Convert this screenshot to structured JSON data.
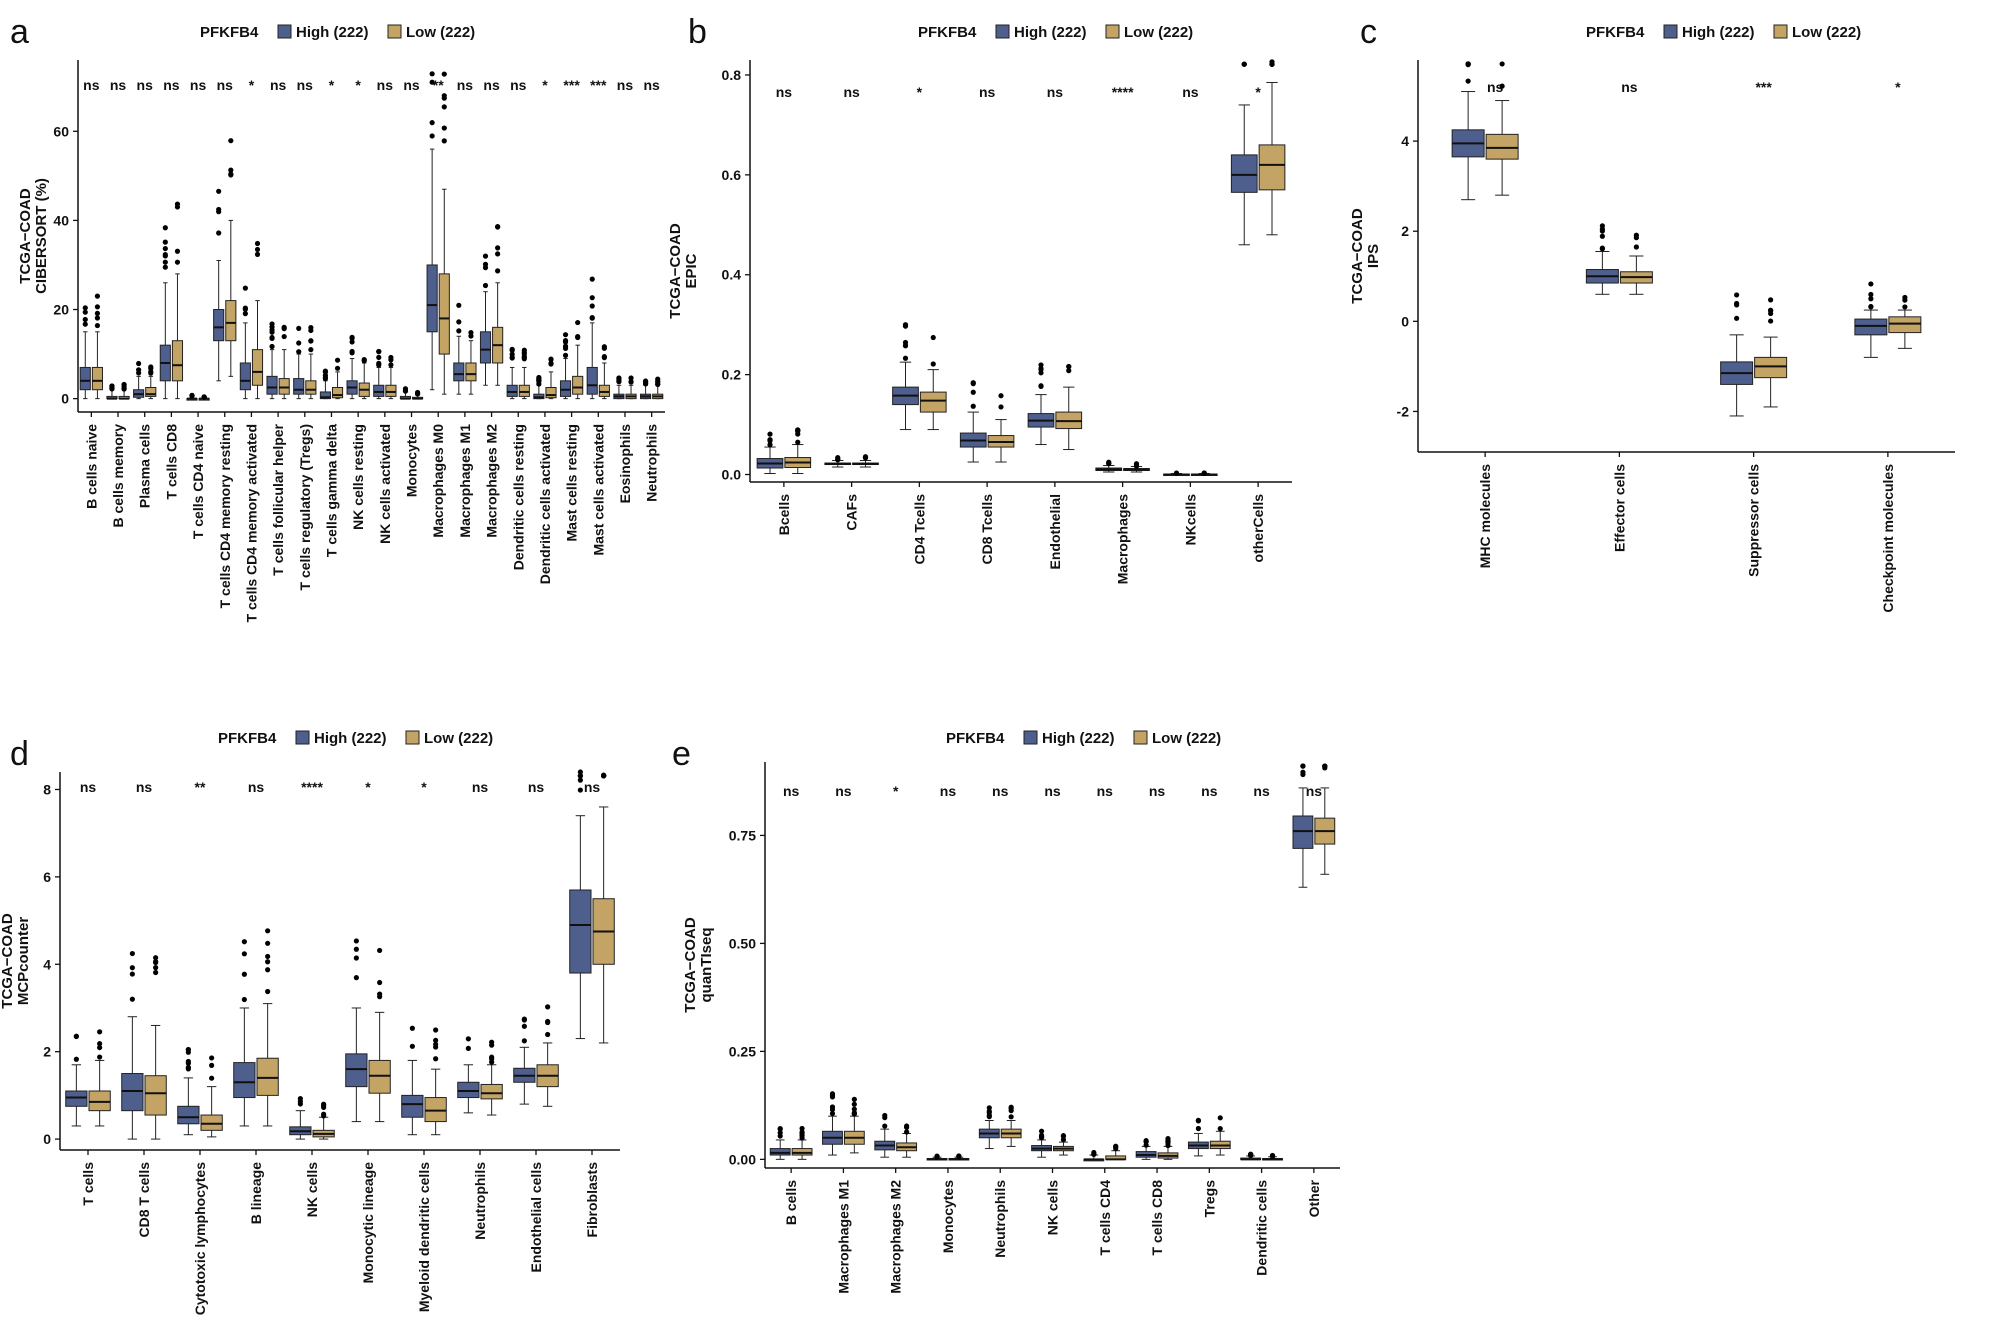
{
  "colors": {
    "high": "#4e5f8d",
    "low": "#c4a464",
    "axis": "#111111",
    "point": "#000000"
  },
  "legend": {
    "title": "PFKFB4",
    "high_label": "High (222)",
    "low_label": "Low (222)"
  },
  "chart_data": [
    {
      "id": "a",
      "panel_label": "a",
      "type": "box",
      "ylabel_line1": "TCGA−COAD",
      "ylabel_line2": "CIBERSORT (%)",
      "ylim": [
        -3,
        76
      ],
      "yticks": [
        0,
        20,
        40,
        60
      ],
      "categories": [
        "B cells naive",
        "B cells memory",
        "Plasma cells",
        "T cells CD8",
        "T cells CD4 naive",
        "T cells CD4 memory resting",
        "T cells CD4 memory activated",
        "T cells follicular helper",
        "T cells regulatory (Tregs)",
        "T cells gamma delta",
        "NK cells resting",
        "NK cells activated",
        "Monocytes",
        "Macrophages M0",
        "Macrophages M1",
        "Macrophages M2",
        "Dendritic cells resting",
        "Dendritic cells activated",
        "Mast cells resting",
        "Mast cells activated",
        "Eosinophils",
        "Neutrophils"
      ],
      "significance": [
        "ns",
        "ns",
        "ns",
        "ns",
        "ns",
        "ns",
        "*",
        "ns",
        "ns",
        "*",
        "*",
        "ns",
        "ns",
        "**",
        "ns",
        "ns",
        "ns",
        "*",
        "***",
        "***",
        "ns",
        "ns"
      ],
      "series": [
        {
          "name": "High (222)",
          "boxes": [
            [
              0,
              2,
              4,
              7,
              15
            ],
            [
              0,
              0,
              0,
              0.5,
              2
            ],
            [
              0,
              0.3,
              1,
              2,
              5
            ],
            [
              0,
              4,
              8,
              12,
              26
            ],
            [
              0,
              0,
              0,
              0,
              0.5
            ],
            [
              4,
              13,
              16,
              20,
              31
            ],
            [
              0,
              2,
              4,
              8,
              17
            ],
            [
              0,
              1,
              2.5,
              5,
              11
            ],
            [
              0,
              1,
              2,
              4.5,
              10
            ],
            [
              0,
              0,
              0.3,
              1.5,
              4
            ],
            [
              0,
              1,
              2.5,
              4,
              9
            ],
            [
              0,
              0.5,
              1.5,
              3,
              7
            ],
            [
              0,
              0,
              0,
              0.5,
              1.5
            ],
            [
              2,
              15,
              21,
              30,
              56
            ],
            [
              1,
              4,
              5.5,
              8,
              14
            ],
            [
              3,
              8,
              11,
              15,
              24
            ],
            [
              0,
              0.5,
              1.5,
              3,
              7
            ],
            [
              0,
              0,
              0.3,
              1,
              3
            ],
            [
              0,
              0.5,
              2,
              4,
              9
            ],
            [
              0,
              1,
              3,
              7,
              17
            ],
            [
              0,
              0,
              0.5,
              1,
              3
            ],
            [
              0,
              0,
              0.5,
              1,
              3
            ]
          ]
        },
        {
          "name": "Low (222)",
          "boxes": [
            [
              0,
              2,
              4,
              7,
              15
            ],
            [
              0,
              0,
              0,
              0.5,
              2
            ],
            [
              0,
              0.5,
              1,
              2.5,
              5
            ],
            [
              0,
              4,
              7.5,
              13,
              28
            ],
            [
              0,
              0,
              0,
              0,
              0.3
            ],
            [
              5,
              13,
              17,
              22,
              40
            ],
            [
              0,
              3,
              6,
              11,
              22
            ],
            [
              0,
              1,
              2.5,
              4.5,
              11
            ],
            [
              0,
              1,
              2,
              4,
              10
            ],
            [
              0,
              0.2,
              0.8,
              2.5,
              6
            ],
            [
              0,
              0.5,
              2,
              3.5,
              8
            ],
            [
              0,
              0.5,
              1.5,
              3,
              7
            ],
            [
              0,
              0,
              0,
              0.3,
              1
            ],
            [
              1,
              10,
              18,
              28,
              47
            ],
            [
              1,
              4,
              5.5,
              8,
              13
            ],
            [
              3,
              8,
              12,
              16,
              26
            ],
            [
              0,
              0.5,
              1.5,
              3,
              7
            ],
            [
              0,
              0.2,
              0.8,
              2.5,
              6
            ],
            [
              0,
              1,
              2.5,
              5,
              12
            ],
            [
              0,
              0.5,
              1.5,
              3,
              8
            ],
            [
              0,
              0,
              0.5,
              1,
              3
            ],
            [
              0,
              0,
              0.5,
              1,
              3
            ]
          ]
        }
      ]
    },
    {
      "id": "b",
      "panel_label": "b",
      "type": "box",
      "ylabel_line1": "TCGA−COAD",
      "ylabel_line2": "EPIC",
      "ylim": [
        -0.015,
        0.83
      ],
      "yticks": [
        0.0,
        0.2,
        0.4,
        0.6,
        0.8
      ],
      "tick_labels": [
        "0.0",
        "0.2",
        "0.4",
        "0.6",
        "0.8"
      ],
      "categories": [
        "Bcells",
        "CAFs",
        "CD4 Tcells",
        "CD8 Tcells",
        "Endothelial",
        "Macrophages",
        "NKcells",
        "otherCells"
      ],
      "significance": [
        "ns",
        "ns",
        "*",
        "ns",
        "ns",
        "****",
        "ns",
        "*"
      ],
      "series": [
        {
          "name": "High (222)",
          "boxes": [
            [
              0.002,
              0.013,
              0.022,
              0.032,
              0.055
            ],
            [
              0.015,
              0.02,
              0.021,
              0.023,
              0.028
            ],
            [
              0.09,
              0.14,
              0.158,
              0.175,
              0.225
            ],
            [
              0.025,
              0.055,
              0.068,
              0.083,
              0.125
            ],
            [
              0.06,
              0.095,
              0.108,
              0.122,
              0.16
            ],
            [
              0.005,
              0.008,
              0.01,
              0.013,
              0.018
            ],
            [
              0.0,
              0.0,
              0.0,
              0.001,
              0.002
            ],
            [
              0.46,
              0.565,
              0.6,
              0.64,
              0.74
            ]
          ]
        },
        {
          "name": "Low (222)",
          "boxes": [
            [
              0.002,
              0.014,
              0.024,
              0.034,
              0.06
            ],
            [
              0.015,
              0.02,
              0.021,
              0.023,
              0.028
            ],
            [
              0.09,
              0.125,
              0.148,
              0.165,
              0.21
            ],
            [
              0.025,
              0.055,
              0.065,
              0.078,
              0.11
            ],
            [
              0.05,
              0.092,
              0.107,
              0.125,
              0.175
            ],
            [
              0.005,
              0.008,
              0.01,
              0.012,
              0.016
            ],
            [
              0.0,
              0.0,
              0.0,
              0.001,
              0.002
            ],
            [
              0.48,
              0.57,
              0.62,
              0.66,
              0.785
            ]
          ]
        }
      ]
    },
    {
      "id": "c",
      "panel_label": "c",
      "type": "box",
      "ylabel_line1": "TCGA−COAD",
      "ylabel_line2": "IPS",
      "ylim": [
        -2.9,
        5.8
      ],
      "yticks": [
        -2,
        0,
        2,
        4
      ],
      "categories": [
        "MHC molecules",
        "Effector cells",
        "Suppressor cells",
        "Checkpoint molecules"
      ],
      "significance": [
        "ns",
        "ns",
        "***",
        "*"
      ],
      "series": [
        {
          "name": "High (222)",
          "boxes": [
            [
              2.7,
              3.65,
              3.95,
              4.25,
              5.1
            ],
            [
              0.6,
              0.85,
              1.0,
              1.15,
              1.55
            ],
            [
              -2.1,
              -1.4,
              -1.15,
              -0.9,
              -0.3
            ],
            [
              -0.8,
              -0.3,
              -0.1,
              0.05,
              0.25
            ]
          ]
        },
        {
          "name": "Low (222)",
          "boxes": [
            [
              2.8,
              3.6,
              3.85,
              4.15,
              4.9
            ],
            [
              0.6,
              0.85,
              0.98,
              1.1,
              1.45
            ],
            [
              -1.9,
              -1.25,
              -1.0,
              -0.8,
              -0.35
            ],
            [
              -0.6,
              -0.25,
              -0.05,
              0.1,
              0.25
            ]
          ]
        }
      ]
    },
    {
      "id": "d",
      "panel_label": "d",
      "type": "box",
      "ylabel_line1": "TCGA−COAD",
      "ylabel_line2": "MCPcounter",
      "ylim": [
        -0.25,
        8.4
      ],
      "yticks": [
        0,
        2,
        4,
        6,
        8
      ],
      "categories": [
        "T cells",
        "CD8 T cells",
        "Cytotoxic lymphocytes",
        "B lineage",
        "NK cells",
        "Monocytic lineage",
        "Myeloid dendritic cells",
        "Neutrophils",
        "Endothelial cells",
        "Fibroblasts"
      ],
      "significance": [
        "ns",
        "ns",
        "**",
        "ns",
        "****",
        "*",
        "*",
        "ns",
        "ns",
        "ns"
      ],
      "series": [
        {
          "name": "High (222)",
          "boxes": [
            [
              0.3,
              0.75,
              0.95,
              1.1,
              1.7
            ],
            [
              0.0,
              0.65,
              1.1,
              1.5,
              2.8
            ],
            [
              0.1,
              0.35,
              0.5,
              0.75,
              1.4
            ],
            [
              0.3,
              0.95,
              1.3,
              1.75,
              3.0
            ],
            [
              0.0,
              0.1,
              0.18,
              0.28,
              0.65
            ],
            [
              0.4,
              1.2,
              1.6,
              1.95,
              3.0
            ],
            [
              0.1,
              0.5,
              0.8,
              1.0,
              1.8
            ],
            [
              0.6,
              0.95,
              1.1,
              1.3,
              1.7
            ],
            [
              0.8,
              1.3,
              1.45,
              1.62,
              2.1
            ],
            [
              2.3,
              3.8,
              4.9,
              5.7,
              7.4
            ]
          ]
        },
        {
          "name": "Low (222)",
          "boxes": [
            [
              0.3,
              0.65,
              0.85,
              1.1,
              1.8
            ],
            [
              0.0,
              0.55,
              1.05,
              1.45,
              2.6
            ],
            [
              0.05,
              0.2,
              0.35,
              0.55,
              1.2
            ],
            [
              0.3,
              1.0,
              1.4,
              1.85,
              3.1
            ],
            [
              0.0,
              0.05,
              0.12,
              0.2,
              0.5
            ],
            [
              0.4,
              1.05,
              1.45,
              1.8,
              2.9
            ],
            [
              0.1,
              0.4,
              0.65,
              0.95,
              1.6
            ],
            [
              0.55,
              0.92,
              1.05,
              1.25,
              1.7
            ],
            [
              0.75,
              1.2,
              1.45,
              1.7,
              2.2
            ],
            [
              2.2,
              4.0,
              4.75,
              5.5,
              7.6
            ]
          ]
        }
      ]
    },
    {
      "id": "e",
      "panel_label": "e",
      "type": "box",
      "ylabel_line1": "TCGA−COAD",
      "ylabel_line2": "quanTIseq",
      "ylim": [
        -0.02,
        0.92
      ],
      "yticks": [
        0.0,
        0.25,
        0.5,
        0.75
      ],
      "tick_labels": [
        "0.00",
        "0.25",
        "0.50",
        "0.75"
      ],
      "categories": [
        "B cells",
        "Macrophages M1",
        "Macrophages M2",
        "Monocytes",
        "Neutrophils",
        "NK cells",
        "T cells CD4",
        "T cells CD8",
        "Tregs",
        "Dendritic cells",
        "Other"
      ],
      "significance": [
        "ns",
        "ns",
        "*",
        "ns",
        "ns",
        "ns",
        "ns",
        "ns",
        "ns",
        "ns",
        "ns"
      ],
      "series": [
        {
          "name": "High (222)",
          "boxes": [
            [
              0.0,
              0.01,
              0.015,
              0.025,
              0.045
            ],
            [
              0.01,
              0.035,
              0.05,
              0.065,
              0.1
            ],
            [
              0.005,
              0.022,
              0.032,
              0.042,
              0.07
            ],
            [
              0.0,
              0.0,
              0.0,
              0.002,
              0.005
            ],
            [
              0.025,
              0.05,
              0.06,
              0.07,
              0.09
            ],
            [
              0.005,
              0.02,
              0.025,
              0.032,
              0.045
            ],
            [
              0.0,
              0.0,
              0.0,
              0.0,
              0.01
            ],
            [
              0.0,
              0.005,
              0.01,
              0.018,
              0.03
            ],
            [
              0.008,
              0.025,
              0.032,
              0.04,
              0.06
            ],
            [
              0.0,
              0.0,
              0.0,
              0.003,
              0.008
            ],
            [
              0.63,
              0.72,
              0.76,
              0.795,
              0.86
            ]
          ]
        },
        {
          "name": "Low (222)",
          "boxes": [
            [
              0.0,
              0.01,
              0.015,
              0.025,
              0.045
            ],
            [
              0.015,
              0.035,
              0.05,
              0.065,
              0.1
            ],
            [
              0.005,
              0.02,
              0.028,
              0.038,
              0.06
            ],
            [
              0.0,
              0.0,
              0.0,
              0.002,
              0.005
            ],
            [
              0.03,
              0.05,
              0.06,
              0.07,
              0.09
            ],
            [
              0.01,
              0.02,
              0.025,
              0.03,
              0.04
            ],
            [
              0.0,
              0.0,
              0.0,
              0.008,
              0.02
            ],
            [
              0.0,
              0.003,
              0.008,
              0.015,
              0.03
            ],
            [
              0.01,
              0.025,
              0.032,
              0.042,
              0.065
            ],
            [
              0.0,
              0.0,
              0.0,
              0.002,
              0.006
            ],
            [
              0.66,
              0.73,
              0.76,
              0.79,
              0.86
            ]
          ]
        }
      ]
    }
  ]
}
